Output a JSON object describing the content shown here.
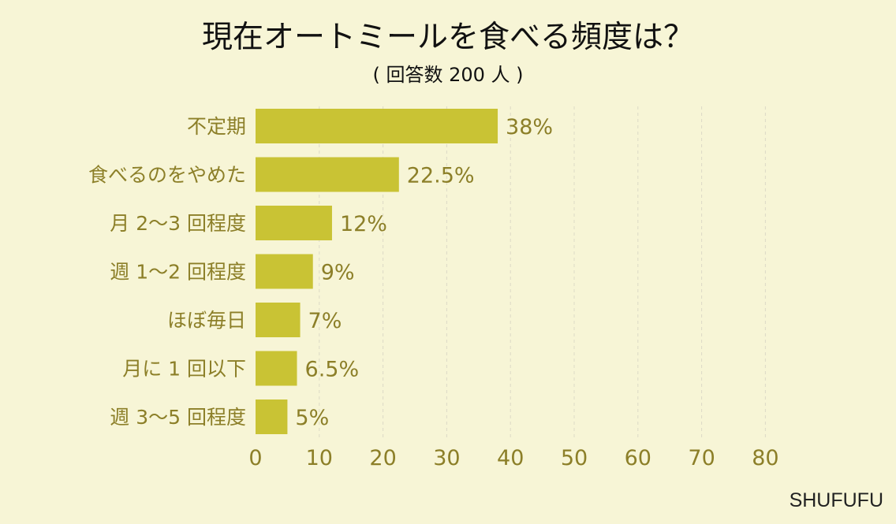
{
  "chart_data": {
    "type": "bar",
    "orientation": "horizontal",
    "title": "現在オートミールを食べる頻度は？",
    "subtitle": "( 回答数 200 人 )",
    "categories": [
      "不定期",
      "食べるのをやめた",
      "月 2〜3 回程度",
      "週 1〜2 回程度",
      "ほぼ毎日",
      "月に 1 回以下",
      "週 3〜5 回程度"
    ],
    "values": [
      38,
      22.5,
      12,
      9,
      7,
      6.5,
      5
    ],
    "value_labels": [
      "38%",
      "22.5%",
      "12%",
      "9%",
      "7%",
      "6.5%",
      "5%"
    ],
    "xlim": [
      0,
      80
    ],
    "x_ticks": [
      0,
      10,
      20,
      30,
      40,
      50,
      60,
      70,
      80
    ],
    "grid": "vertical dashed",
    "legend": "none"
  },
  "watermark": "SHUFUFU",
  "colors": {
    "background": "#F7F5D6",
    "bar": "#C9C334",
    "label_text": "#8C7F28",
    "title_text": "#111111",
    "grid": "#DCDAC6",
    "watermark_text": "#222222"
  }
}
